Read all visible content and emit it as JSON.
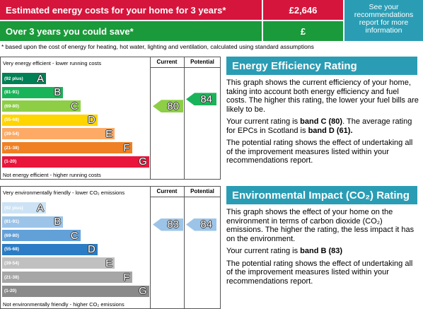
{
  "costs": {
    "estimated_label": "Estimated energy costs for your home for 3 years*",
    "estimated_value": "£2,646",
    "save_label": "Over 3 years you could save*",
    "save_value": "£",
    "recommendations": "See your recommendations report for more information"
  },
  "footnote": "* based upon the cost of energy for heating, hot water, lighting and ventilation, calculated using standard assumptions",
  "energy_chart": {
    "top_label": "Very energy efficient - lower running costs",
    "bottom_label": "Not energy efficient - higher running costs",
    "current_header": "Current",
    "potential_header": "Potential",
    "current": "80",
    "potential": "84",
    "bands": [
      {
        "range": "(92 plus)",
        "letter": "A",
        "color": "#008054"
      },
      {
        "range": "(81-91)",
        "letter": "B",
        "color": "#19b459"
      },
      {
        "range": "(69-80)",
        "letter": "C",
        "color": "#8dce46"
      },
      {
        "range": "(55-68)",
        "letter": "D",
        "color": "#ffd500"
      },
      {
        "range": "(39-54)",
        "letter": "E",
        "color": "#fcaa65"
      },
      {
        "range": "(21-38)",
        "letter": "F",
        "color": "#ef8023"
      },
      {
        "range": "(1-20)",
        "letter": "G",
        "color": "#e9153b"
      }
    ]
  },
  "environment_chart": {
    "top_label": "Very environmentally friendly - lower CO₂ emissions",
    "bottom_label": "Not environmentally friendly - higher CO₂ emissions",
    "current_header": "Current",
    "potential_header": "Potential",
    "current": "83",
    "potential": "84",
    "bands": [
      {
        "range": "(92 plus)",
        "letter": "A",
        "color": "#cde3f5"
      },
      {
        "range": "(81-91)",
        "letter": "B",
        "color": "#9cc4e8"
      },
      {
        "range": "(69-80)",
        "letter": "C",
        "color": "#62a0d8"
      },
      {
        "range": "(55-68)",
        "letter": "D",
        "color": "#2b7cc4"
      },
      {
        "range": "(39-54)",
        "letter": "E",
        "color": "#c0c0c0"
      },
      {
        "range": "(21-38)",
        "letter": "F",
        "color": "#a6a6a6"
      },
      {
        "range": "(1-20)",
        "letter": "G",
        "color": "#8a8a8a"
      }
    ]
  },
  "energy_text": {
    "title": "Energy Efficiency Rating",
    "paragraphs": [
      [
        "This graph shows the current efficiency of your home, taking into account both energy efficiency and fuel costs. The higher this rating, the lower your fuel bills are likely to be."
      ],
      [
        "Your current rating is ",
        "band C (80)",
        ". The average rating for EPCs in Scotland is ",
        "band D (61)."
      ],
      [
        "The potential rating shows the effect of undertaking all of the improvement measures listed within your recommendations report."
      ]
    ]
  },
  "environment_text": {
    "title": "Environmental Impact (CO₂) Rating",
    "paragraphs": [
      [
        "This graph shows the effect of your home on the environment in terms of carbon dioxide (CO₂) emissions. The higher the rating, the less impact it has on the environment."
      ],
      [
        "Your current rating is ",
        "band B (83)"
      ],
      [
        "The potential rating shows the effect of undertaking all of the improvement measures listed within your recommendations report."
      ]
    ]
  }
}
